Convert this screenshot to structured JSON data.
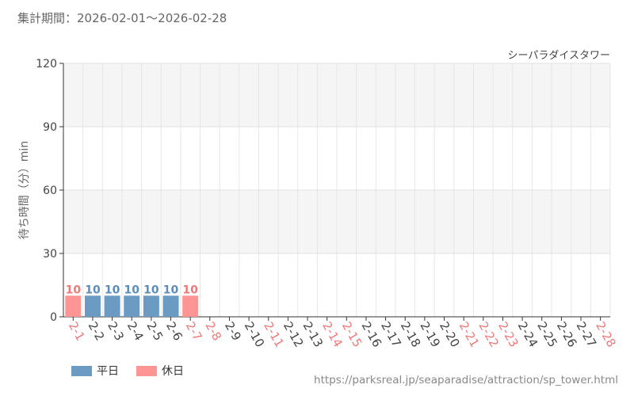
{
  "header": {
    "period_text": "集計期間：2026-02-01〜2026-02-28"
  },
  "footer": {
    "source_url": "https://parksreal.jp/seaparadise/attraction/sp_tower.html"
  },
  "colors": {
    "weekday": "#6b9bc3",
    "weekday_label": "#5b8db8",
    "holiday": "#ff9494",
    "holiday_label": "#f07878",
    "tick_default": "#444444"
  },
  "chart_data": {
    "type": "bar",
    "title": "シーパラダイスタワー",
    "ylabel": "待ち時間（分）min",
    "xlabel": "",
    "ylim": [
      0,
      120
    ],
    "yticks": [
      0,
      30,
      60,
      90,
      120
    ],
    "grid": true,
    "legend_position": "bottom-left",
    "categories": [
      "2-1",
      "2-2",
      "2-3",
      "2-4",
      "2-5",
      "2-6",
      "2-7",
      "2-8",
      "2-9",
      "2-10",
      "2-11",
      "2-12",
      "2-13",
      "2-14",
      "2-15",
      "2-16",
      "2-17",
      "2-18",
      "2-19",
      "2-20",
      "2-21",
      "2-22",
      "2-23",
      "2-24",
      "2-25",
      "2-26",
      "2-27",
      "2-28"
    ],
    "day_types": [
      "holiday",
      "weekday",
      "weekday",
      "weekday",
      "weekday",
      "weekday",
      "holiday",
      "holiday",
      "weekday",
      "weekday",
      "holiday",
      "weekday",
      "weekday",
      "holiday",
      "holiday",
      "weekday",
      "weekday",
      "weekday",
      "weekday",
      "weekday",
      "holiday",
      "holiday",
      "holiday",
      "weekday",
      "weekday",
      "weekday",
      "weekday",
      "holiday"
    ],
    "values": [
      10,
      10,
      10,
      10,
      10,
      10,
      10,
      null,
      null,
      null,
      null,
      null,
      null,
      null,
      null,
      null,
      null,
      null,
      null,
      null,
      null,
      null,
      null,
      null,
      null,
      null,
      null,
      null
    ],
    "legend": [
      {
        "key": "weekday",
        "label": "平日"
      },
      {
        "key": "holiday",
        "label": "休日"
      }
    ]
  }
}
